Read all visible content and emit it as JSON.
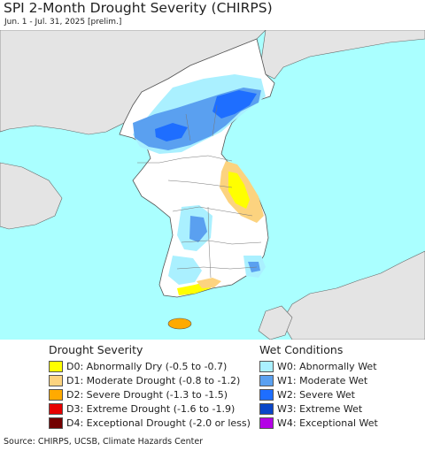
{
  "title": "SPI 2-Month Drought Severity (CHIRPS)",
  "subtitle": "Jun. 1 - Jul. 31, 2025 [prelim.]",
  "drought_legend": {
    "heading": "Drought Severity",
    "items": [
      {
        "label": "D0: Abnormally Dry (-0.5 to -0.7)",
        "color": "#ffff00"
      },
      {
        "label": "D1: Moderate Drought (-0.8 to -1.2)",
        "color": "#fcd37f"
      },
      {
        "label": "D2: Severe Drought (-1.3 to -1.5)",
        "color": "#ffaa00"
      },
      {
        "label": "D3: Extreme Drought (-1.6 to -1.9)",
        "color": "#e60000"
      },
      {
        "label": "D4: Exceptional Drought (-2.0 or less)",
        "color": "#730000"
      }
    ]
  },
  "wet_legend": {
    "heading": "Wet Conditions",
    "items": [
      {
        "label": "W0: Abnormally Wet",
        "color": "#aaf0ff"
      },
      {
        "label": "W1: Moderate Wet",
        "color": "#5aa0f0"
      },
      {
        "label": "W2: Severe Wet",
        "color": "#1e6eff"
      },
      {
        "label": "W3: Extreme Wet",
        "color": "#0a46c8"
      },
      {
        "label": "W4: Exceptional Wet",
        "color": "#b400e6"
      }
    ]
  },
  "map_colors": {
    "water": "#aaffff",
    "land": "#e4e4e4",
    "peninsula": "#ffffff"
  },
  "source": "Source: CHIRPS, UCSB, Climate Hazards Center"
}
